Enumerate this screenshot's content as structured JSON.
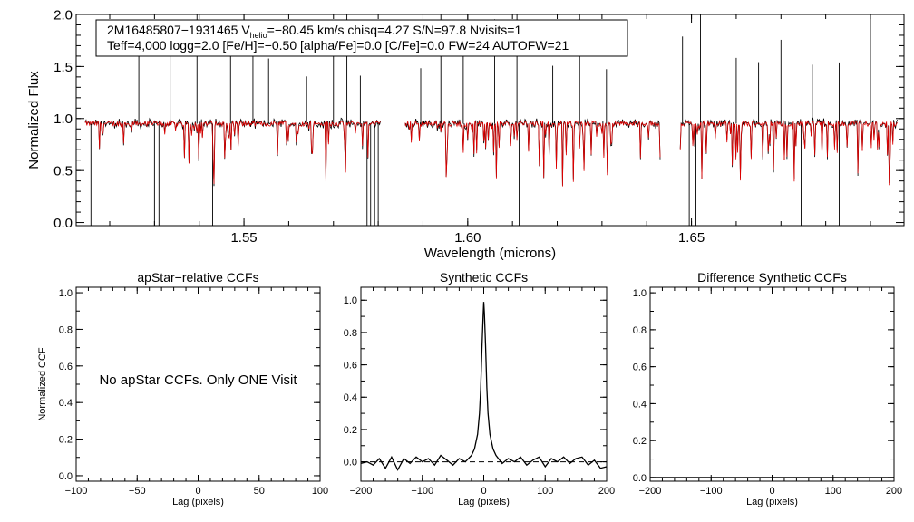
{
  "chart_data": [
    {
      "type": "line",
      "title": "",
      "xlabel": "Wavelength (microns)",
      "ylabel": "Normalized Flux",
      "xlim": [
        1.5125,
        1.6975
      ],
      "ylim": [
        -0.03,
        2.0
      ],
      "xticks": [
        1.55,
        1.6,
        1.65
      ],
      "xtick_labels": [
        "1.55",
        "1.60",
        "1.65"
      ],
      "yticks": [
        0.0,
        0.5,
        1.0,
        1.5,
        2.0
      ],
      "ytick_labels": [
        "0.0",
        "0.5",
        "1.0",
        "1.5",
        "2.0"
      ],
      "series": [
        {
          "name": "observed spectrum",
          "color": "#000000",
          "continuum": 0.95
        },
        {
          "name": "synthetic model",
          "color": "#dd0000",
          "continuum": 0.95
        }
      ],
      "chip_ranges": [
        [
          1.5145,
          1.5805
        ],
        [
          1.586,
          1.643
        ],
        [
          1.6475,
          1.696
        ]
      ],
      "annotation": {
        "star_id": "2M16485807−1931465",
        "v_prefix": "V",
        "v_sub": "helio",
        "v_value": "=−80.45 km/s",
        "chisq": "chisq=4.27",
        "sn": "S/N=97.8",
        "nvisits": "Nvisits=1",
        "params": "Teff=4,000 logg=2.0 [Fe/H]=−0.50 [alpha/Fe]=0.0 [C/Fe]=0.0 FW=24 AUTOFW=21"
      }
    },
    {
      "type": "line",
      "title": "apStar−relative CCFs",
      "xlabel": "Lag (pixels)",
      "ylabel": "Normalized CCF",
      "xlim": [
        -100,
        100
      ],
      "ylim": [
        -0.03,
        1.03
      ],
      "xticks": [
        -100,
        -50,
        0,
        50,
        100
      ],
      "xtick_labels": [
        "−100",
        "−50",
        "0",
        "50",
        "100"
      ],
      "yticks": [
        0.0,
        0.2,
        0.4,
        0.6,
        0.8,
        1.0
      ],
      "ytick_labels": [
        "0.0",
        "0.2",
        "0.4",
        "0.6",
        "0.8",
        "1.0"
      ],
      "message": "No apStar CCFs.  Only ONE Visit",
      "series": []
    },
    {
      "type": "line",
      "title": "Synthetic CCFs",
      "xlabel": "Lag (pixels)",
      "ylabel": "",
      "xlim": [
        -200,
        200
      ],
      "ylim": [
        -0.12,
        1.08
      ],
      "xticks": [
        -200,
        -100,
        0,
        100,
        200
      ],
      "xtick_labels": [
        "−200",
        "−100",
        "0",
        "100",
        "200"
      ],
      "yticks": [
        0.0,
        0.2,
        0.4,
        0.6,
        0.8,
        1.0
      ],
      "ytick_labels": [
        "0.0",
        "0.2",
        "0.4",
        "0.6",
        "0.8",
        "1.0"
      ],
      "series": [
        {
          "name": "synthetic CCF",
          "x": [
            -200,
            -190,
            -180,
            -170,
            -160,
            -150,
            -140,
            -130,
            -120,
            -110,
            -100,
            -90,
            -80,
            -70,
            -60,
            -50,
            -40,
            -30,
            -20,
            -15,
            -10,
            -7,
            -5,
            -3,
            -1,
            0,
            1,
            3,
            5,
            7,
            10,
            15,
            20,
            30,
            40,
            50,
            60,
            70,
            80,
            90,
            100,
            110,
            120,
            130,
            140,
            150,
            160,
            170,
            180,
            190,
            200
          ],
          "y": [
            -0.01,
            0.0,
            -0.02,
            0.02,
            -0.04,
            0.03,
            -0.05,
            0.02,
            -0.01,
            0.03,
            0.0,
            0.02,
            -0.02,
            0.04,
            0.01,
            -0.02,
            0.02,
            0.0,
            0.04,
            0.08,
            0.17,
            0.3,
            0.45,
            0.7,
            0.9,
            0.99,
            0.92,
            0.72,
            0.46,
            0.3,
            0.17,
            0.08,
            0.04,
            -0.01,
            0.02,
            0.0,
            0.03,
            -0.02,
            0.01,
            0.03,
            -0.03,
            0.02,
            0.0,
            0.03,
            -0.01,
            0.02,
            0.03,
            -0.02,
            0.01,
            -0.04,
            -0.03
          ]
        },
        {
          "name": "zero level",
          "style": "dashed",
          "x": [
            -200,
            200
          ],
          "y": [
            0,
            0
          ]
        }
      ]
    },
    {
      "type": "line",
      "title": "Difference Synthetic CCFs",
      "xlabel": "Lag (pixels)",
      "ylabel": "",
      "xlim": [
        -200,
        200
      ],
      "ylim": [
        -0.02,
        1.03
      ],
      "xticks": [
        -200,
        -100,
        0,
        100,
        200
      ],
      "xtick_labels": [
        "−200",
        "−100",
        "0",
        "100",
        "200"
      ],
      "yticks": [
        0.0,
        0.2,
        0.4,
        0.6,
        0.8,
        1.0
      ],
      "ytick_labels": [
        "0.0",
        "0.2",
        "0.4",
        "0.6",
        "0.8",
        "1.0"
      ],
      "series": [
        {
          "name": "difference CCF",
          "x": [
            -200,
            200
          ],
          "y": [
            0,
            0
          ]
        }
      ]
    }
  ]
}
